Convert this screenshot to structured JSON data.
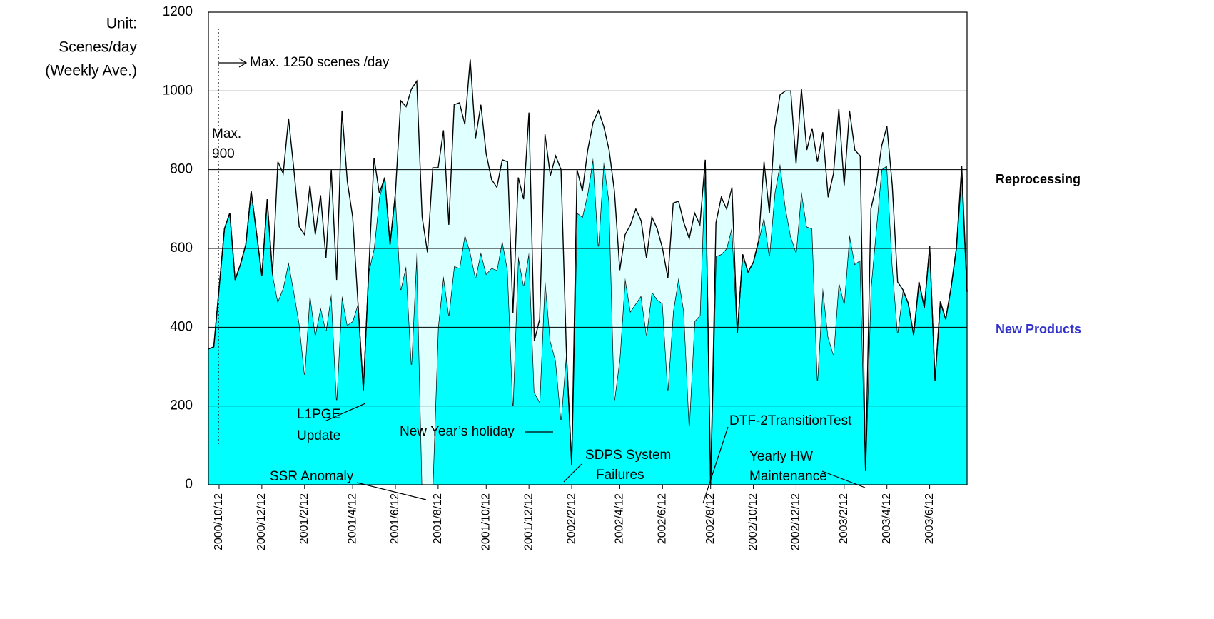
{
  "chart_data": {
    "type": "stacked_area",
    "y_label_lines": [
      "Unit:",
      "Scenes/day",
      "(Weekly Ave.)"
    ],
    "categories": [
      null,
      null,
      "2000/10/12",
      null,
      null,
      null,
      null,
      null,
      null,
      null,
      "2000/12/12",
      null,
      null,
      null,
      null,
      null,
      null,
      null,
      "2001/2/12",
      null,
      null,
      null,
      null,
      null,
      null,
      null,
      null,
      "2001/4/12",
      null,
      null,
      null,
      null,
      null,
      null,
      null,
      "2001/6/12",
      null,
      null,
      null,
      null,
      null,
      null,
      null,
      "2001/8/12",
      null,
      null,
      null,
      null,
      null,
      null,
      null,
      null,
      "2001/10/12",
      null,
      null,
      null,
      null,
      null,
      null,
      null,
      "2001/12/12",
      null,
      null,
      null,
      null,
      null,
      null,
      null,
      "2002/2/12",
      null,
      null,
      null,
      null,
      null,
      null,
      null,
      null,
      "2002/4/12",
      null,
      null,
      null,
      null,
      null,
      null,
      null,
      "2002/6/12",
      null,
      null,
      null,
      null,
      null,
      null,
      null,
      null,
      "2002/8/12",
      null,
      null,
      null,
      null,
      null,
      null,
      null,
      "2002/10/12",
      null,
      null,
      null,
      null,
      null,
      null,
      null,
      "2002/12/12",
      null,
      null,
      null,
      null,
      null,
      null,
      null,
      null,
      "2003/2/12",
      null,
      null,
      null,
      null,
      null,
      null,
      null,
      "2003/4/12",
      null,
      null,
      null,
      null,
      null,
      null,
      null,
      "2003/6/12",
      null,
      null,
      null,
      null,
      null,
      null,
      null
    ],
    "series": [
      {
        "name": "New Products",
        "color": "#00ffff",
        "label_color": "#3333cc",
        "values": [
          345,
          350,
          500,
          650,
          690,
          520,
          560,
          610,
          745,
          640,
          530,
          720,
          535,
          465,
          500,
          565,
          490,
          410,
          280,
          485,
          380,
          450,
          390,
          485,
          215,
          480,
          405,
          415,
          460,
          240,
          540,
          600,
          730,
          780,
          610,
          740,
          495,
          555,
          305,
          590,
          0,
          0,
          0,
          400,
          530,
          430,
          555,
          550,
          635,
          590,
          525,
          590,
          535,
          550,
          545,
          620,
          545,
          200,
          580,
          505,
          590,
          235,
          210,
          525,
          365,
          315,
          165,
          335,
          50,
          690,
          680,
          740,
          830,
          605,
          820,
          720,
          215,
          320,
          525,
          440,
          460,
          480,
          380,
          490,
          470,
          460,
          240,
          440,
          525,
          440,
          150,
          415,
          430,
          825,
          0,
          580,
          585,
          600,
          655,
          385,
          585,
          540,
          565,
          620,
          680,
          580,
          740,
          815,
          705,
          630,
          590,
          745,
          655,
          650,
          265,
          500,
          375,
          330,
          515,
          460,
          635,
          560,
          570,
          35,
          500,
          650,
          800,
          810,
          560,
          385,
          495,
          460,
          380,
          515,
          450,
          605,
          265,
          465,
          420,
          500,
          600,
          790,
          490
        ]
      },
      {
        "name": "Reprocessing",
        "color": "#e0ffff",
        "label_color": "#000000",
        "values": [
          0,
          0,
          0,
          0,
          0,
          0,
          0,
          0,
          0,
          0,
          0,
          5,
          0,
          355,
          290,
          365,
          310,
          245,
          355,
          275,
          255,
          285,
          185,
          315,
          305,
          470,
          365,
          265,
          0,
          0,
          0,
          230,
          10,
          0,
          0,
          0,
          480,
          405,
          700,
          435,
          680,
          590,
          805,
          405,
          370,
          230,
          410,
          420,
          280,
          490,
          355,
          375,
          305,
          225,
          210,
          205,
          275,
          235,
          200,
          220,
          355,
          130,
          210,
          365,
          420,
          520,
          635,
          5,
          0,
          110,
          65,
          110,
          90,
          345,
          90,
          130,
          530,
          225,
          110,
          220,
          240,
          190,
          195,
          190,
          180,
          140,
          285,
          275,
          195,
          225,
          475,
          275,
          230,
          0,
          0,
          85,
          145,
          100,
          100,
          0,
          0,
          0,
          0,
          0,
          140,
          110,
          165,
          175,
          295,
          370,
          225,
          260,
          195,
          255,
          555,
          395,
          355,
          460,
          440,
          300,
          315,
          290,
          265,
          0,
          200,
          110,
          60,
          100,
          200,
          130,
          0,
          0,
          0,
          0,
          0,
          0,
          0,
          0,
          0,
          0,
          0,
          20,
          0
        ]
      }
    ],
    "ylim": [
      0,
      1200
    ],
    "yticks": [
      0,
      200,
      400,
      600,
      800,
      1000,
      1200
    ],
    "grid": true,
    "annotations": [
      {
        "lines": [
          "Max. 1250 scenes /day"
        ]
      },
      {
        "lines": [
          "Max.",
          "900"
        ]
      },
      {
        "lines": [
          "L1PGE",
          "Update"
        ]
      },
      {
        "lines": [
          "New Year’s holiday"
        ]
      },
      {
        "lines": [
          "SSR Anomaly"
        ]
      },
      {
        "lines": [
          "SDPS System",
          "Failures"
        ]
      },
      {
        "lines": [
          "DTF-2TransitionTest"
        ]
      },
      {
        "lines": [
          "Yearly HW",
          "Maintenance"
        ]
      }
    ]
  }
}
